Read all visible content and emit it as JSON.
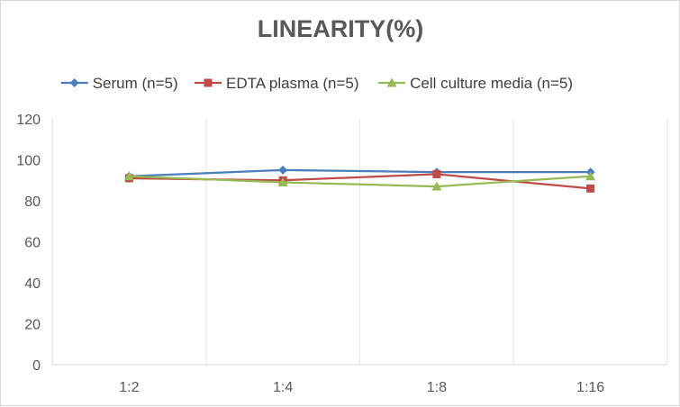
{
  "chart_data": {
    "type": "line",
    "title": "LINEARITY(%)",
    "xlabel": "",
    "ylabel": "",
    "categories": [
      "1:2",
      "1:4",
      "1:8",
      "1:16"
    ],
    "ylim": [
      0,
      120
    ],
    "yticks": [
      0,
      20,
      40,
      60,
      80,
      100,
      120
    ],
    "grid": "vertical lines between categories",
    "legend_position": "top",
    "series": [
      {
        "name": "Serum (n=5)",
        "values": [
          92,
          95,
          94,
          94
        ],
        "color": "#4a7ebb",
        "marker": "diamond"
      },
      {
        "name": "EDTA plasma (n=5)",
        "values": [
          91,
          90,
          93,
          86
        ],
        "color": "#be4b48",
        "marker": "square"
      },
      {
        "name": "Cell culture media (n=5)",
        "values": [
          92,
          89,
          87,
          92
        ],
        "color": "#98b954",
        "marker": "triangle"
      }
    ]
  }
}
